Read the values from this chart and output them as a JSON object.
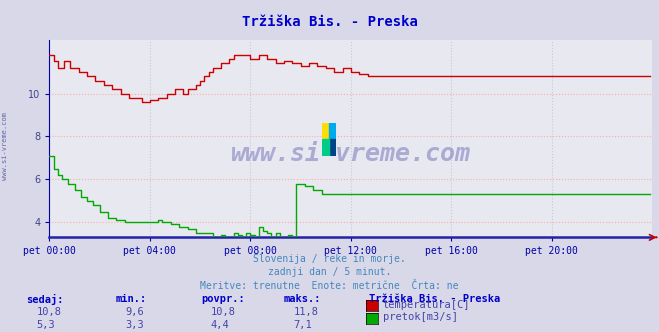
{
  "title": "Tržiška Bis. - Preska",
  "title_color": "#0000cc",
  "bg_color": "#d8d8e8",
  "plot_bg_color": "#e8e8f0",
  "grid_color_h": "#ffaaaa",
  "grid_color_v": "#c8c8d8",
  "axis_color": "#0000aa",
  "x_label_color": "#0000aa",
  "y_label_color": "#444488",
  "left_label": "www.si-vreme.com",
  "watermark_text": "www.si-vreme.com",
  "subtitle_lines": [
    "Slovenija / reke in morje.",
    "zadnji dan / 5 minut.",
    "Meritve: trenutne  Enote: metrične  Črta: ne"
  ],
  "subtitle_color": "#4488bb",
  "x_ticks": [
    "pet 00:00",
    "pet 04:00",
    "pet 08:00",
    "pet 12:00",
    "pet 16:00",
    "pet 20:00"
  ],
  "x_tick_positions": [
    0,
    48,
    96,
    144,
    192,
    240
  ],
  "y_ticks": [
    4,
    6,
    8,
    10
  ],
  "ylim": [
    3.3,
    12.5
  ],
  "xlim": [
    0,
    288
  ],
  "temp_color": "#cc0000",
  "flow_color": "#00aa00",
  "footer_label_color": "#0000cc",
  "footer_data_color": "#4444aa",
  "footer_cols": [
    "sedaj:",
    "min.:",
    "povpr.:",
    "maks.:"
  ],
  "footer_temp": [
    "10,8",
    "9,6",
    "10,8",
    "11,8"
  ],
  "footer_flow": [
    "5,3",
    "3,3",
    "4,4",
    "7,1"
  ],
  "footer_station": "Tržiška Bis. - Preska",
  "footer_temp_label": "temperatura[C]",
  "footer_flow_label": "pretok[m3/s]"
}
